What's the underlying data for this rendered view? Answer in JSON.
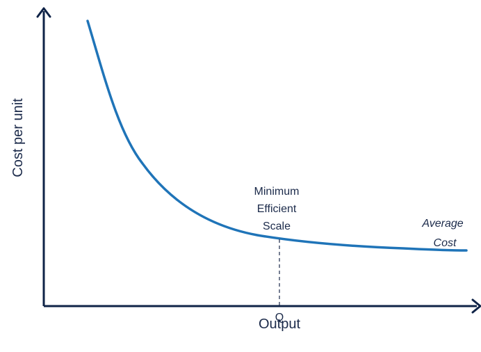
{
  "axes": {
    "y_label": "Cost per unit",
    "x_label": "Output"
  },
  "annotation": {
    "line1": "Minimum",
    "line2": "Efficient",
    "line3": "Scale"
  },
  "curve_label": {
    "line1": "Average",
    "line2": "Cost"
  },
  "q_label": "Q",
  "colors": {
    "axis": "#0f2347",
    "curve": "#1f74b8",
    "text": "#1b2a4a"
  }
}
